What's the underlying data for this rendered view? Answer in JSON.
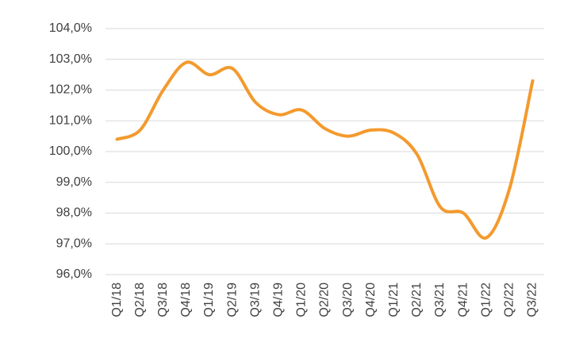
{
  "chart_data": {
    "type": "line",
    "categories": [
      "Q1/18",
      "Q2/18",
      "Q3/18",
      "Q4/18",
      "Q1/19",
      "Q2/19",
      "Q3/19",
      "Q4/19",
      "Q1/20",
      "Q2/20",
      "Q3/20",
      "Q4/20",
      "Q1/21",
      "Q2/21",
      "Q3/21",
      "Q4/21",
      "Q1/22",
      "Q2/22",
      "Q3/22"
    ],
    "values": [
      100.4,
      100.7,
      102.0,
      102.9,
      102.5,
      102.7,
      101.6,
      101.2,
      101.35,
      100.75,
      100.5,
      100.7,
      100.6,
      99.9,
      98.2,
      98.0,
      97.2,
      98.8,
      102.3
    ],
    "color": "#f39a2e",
    "ylim": [
      96,
      104
    ],
    "yticks": [
      {
        "value": 96,
        "label": "96,0%"
      },
      {
        "value": 97,
        "label": "97,0%"
      },
      {
        "value": 98,
        "label": "98,0%"
      },
      {
        "value": 99,
        "label": "99,0%"
      },
      {
        "value": 100,
        "label": "100,0%"
      },
      {
        "value": 101,
        "label": "101,0%"
      },
      {
        "value": 102,
        "label": "102,0%"
      },
      {
        "value": 103,
        "label": "103,0%"
      },
      {
        "value": 104,
        "label": "104,0%"
      }
    ],
    "grid": true
  }
}
